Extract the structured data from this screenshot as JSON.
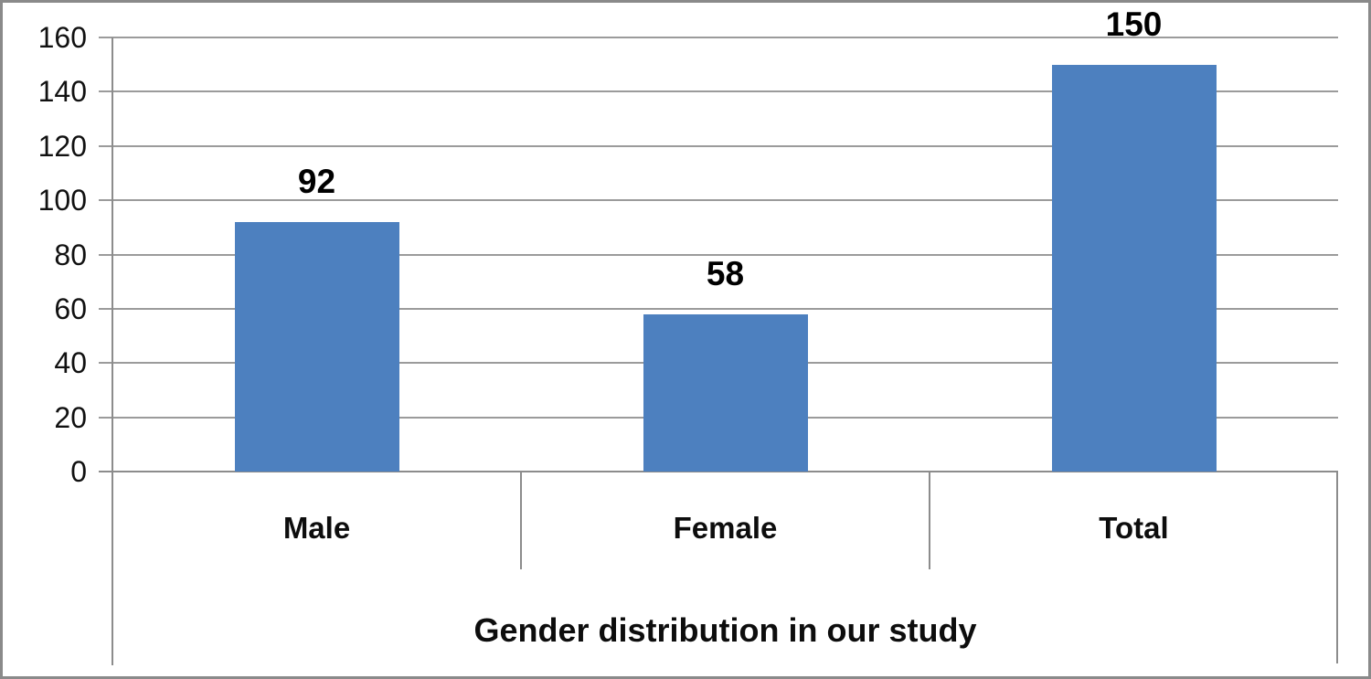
{
  "chart_data": {
    "type": "bar",
    "categories": [
      "Male",
      "Female",
      "Total"
    ],
    "values": [
      92,
      58,
      150
    ],
    "data_labels": [
      "92",
      "58",
      "150"
    ],
    "title": "",
    "xlabel": "Gender distribution in our study",
    "ylabel": "",
    "ylim": [
      0,
      160
    ],
    "yticks": [
      0,
      20,
      40,
      60,
      80,
      100,
      120,
      140,
      160
    ],
    "grid": true,
    "legend_position": "none",
    "bar_color": "#4d80bf",
    "gridline_color": "#9b9b9b",
    "axis_line_color": "#8c8c8c",
    "frame_color": "#8a8a8a",
    "text_color": "#000000"
  },
  "layout_note": "single-series vertical bar chart, white background, gray picture frame border"
}
